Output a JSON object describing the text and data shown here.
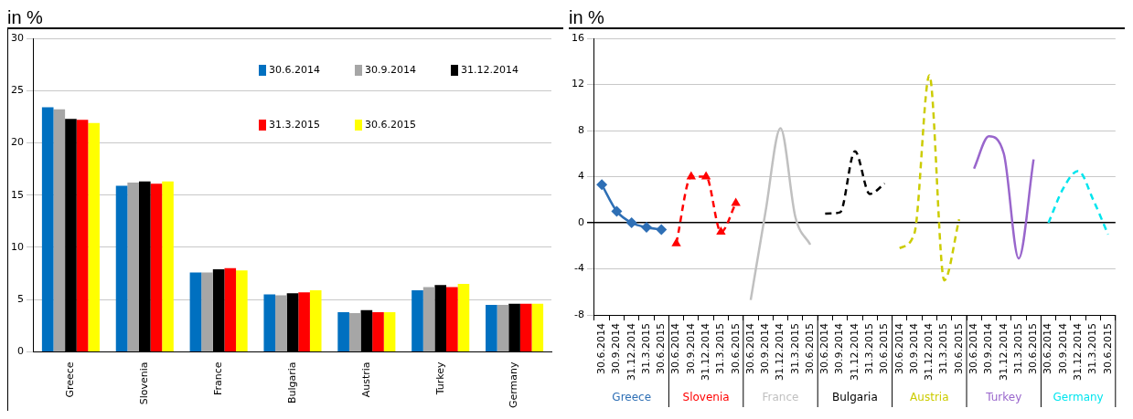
{
  "chart_data": [
    {
      "type": "bar",
      "ylabel": "in %",
      "categories": [
        "Greece",
        "Slovenia",
        "France",
        "Bulgaria",
        "Austria",
        "Turkey",
        "Germany"
      ],
      "series": [
        {
          "name": "30.6.2014",
          "color": "#0070c0",
          "values": [
            23.4,
            15.9,
            7.6,
            5.5,
            3.8,
            5.9,
            4.5
          ]
        },
        {
          "name": "30.9.2014",
          "color": "#a6a6a6",
          "values": [
            23.2,
            16.2,
            7.6,
            5.4,
            3.7,
            6.2,
            4.5
          ]
        },
        {
          "name": "31.12.2014",
          "color": "#000000",
          "values": [
            22.3,
            16.3,
            7.9,
            5.6,
            4.0,
            6.4,
            4.6
          ]
        },
        {
          "name": "31.3.2015",
          "color": "#ff0000",
          "values": [
            22.2,
            16.1,
            8.0,
            5.7,
            3.8,
            6.2,
            4.6
          ]
        },
        {
          "name": "30.6.2015",
          "color": "#ffff00",
          "values": [
            21.9,
            16.3,
            7.8,
            5.9,
            3.8,
            6.5,
            4.6
          ]
        }
      ],
      "ylim": [
        0,
        30
      ],
      "yticks": [
        0,
        5,
        10,
        15,
        20,
        25,
        30
      ],
      "grid": "y",
      "legend": "top right"
    },
    {
      "type": "line",
      "ylabel": "in %",
      "categories": [
        "30.6.2014",
        "30.9.2014",
        "31.12.2014",
        "31.3.2015",
        "30.6.2015",
        "30.6.2014",
        "30.9.2014",
        "31.12.2014",
        "31.3.2015",
        "30.6.2015",
        "30.6.2014",
        "30.9.2014",
        "31.12.2014",
        "31.3.2015",
        "30.6.2015",
        "30.6.2014",
        "30.9.2014",
        "31.12.2014",
        "31.3.2015",
        "30.6.2015",
        "30.6.2014",
        "30.9.2014",
        "31.12.2014",
        "31.3.2015",
        "30.6.2015",
        "30.6.2014",
        "30.9.2014",
        "31.12.2014",
        "31.3.2015",
        "30.6.2015",
        "30.6.2014",
        "30.9.2014",
        "31.12.2014",
        "31.3.2015",
        "30.6.2015"
      ],
      "series": [
        {
          "name": "Greece",
          "color": "#2e6fb5",
          "marker": "diamond",
          "line_style": "solid",
          "values": [
            3.3,
            1.0,
            0.0,
            -0.4,
            -0.6,
            null,
            null,
            null,
            null,
            null,
            null,
            null,
            null,
            null,
            null,
            null,
            null,
            null,
            null,
            null,
            null,
            null,
            null,
            null,
            null,
            null,
            null,
            null,
            null,
            null,
            null,
            null,
            null,
            null,
            null
          ]
        },
        {
          "name": "Slovenia",
          "color": "#ff0000",
          "marker": "triangle",
          "line_style": "dashed",
          "values": [
            null,
            null,
            null,
            null,
            null,
            -1.8,
            4.0,
            4.0,
            -0.8,
            1.7,
            null,
            null,
            null,
            null,
            null,
            null,
            null,
            null,
            null,
            null,
            null,
            null,
            null,
            null,
            null,
            null,
            null,
            null,
            null,
            null,
            null,
            null,
            null,
            null,
            null
          ]
        },
        {
          "name": "France",
          "color": "#c0c0c0",
          "marker": "none",
          "line_style": "solid",
          "values": [
            null,
            null,
            null,
            null,
            null,
            null,
            null,
            null,
            null,
            null,
            -6.7,
            1.0,
            8.2,
            0.5,
            -1.9,
            null,
            null,
            null,
            null,
            null,
            null,
            null,
            null,
            null,
            null,
            null,
            null,
            null,
            null,
            null,
            null,
            null,
            null,
            null,
            null
          ]
        },
        {
          "name": "Bulgaria",
          "color": "#000000",
          "marker": "none",
          "line_style": "dashed",
          "values": [
            null,
            null,
            null,
            null,
            null,
            null,
            null,
            null,
            null,
            null,
            null,
            null,
            null,
            null,
            null,
            0.8,
            0.9,
            6.2,
            2.5,
            3.4,
            null,
            null,
            null,
            null,
            null,
            null,
            null,
            null,
            null,
            null,
            null,
            null,
            null,
            null,
            null
          ]
        },
        {
          "name": "Austria",
          "color": "#cccc00",
          "marker": "none",
          "line_style": "dashed",
          "values": [
            null,
            null,
            null,
            null,
            null,
            null,
            null,
            null,
            null,
            null,
            null,
            null,
            null,
            null,
            null,
            null,
            null,
            null,
            null,
            null,
            -2.2,
            -0.9,
            12.8,
            -5.0,
            0.3,
            null,
            null,
            null,
            null,
            null,
            null,
            null,
            null,
            null,
            null
          ]
        },
        {
          "name": "Turkey",
          "color": "#9966cc",
          "marker": "none",
          "line_style": "solid",
          "values": [
            null,
            null,
            null,
            null,
            null,
            null,
            null,
            null,
            null,
            null,
            null,
            null,
            null,
            null,
            null,
            null,
            null,
            null,
            null,
            null,
            null,
            null,
            null,
            null,
            null,
            4.7,
            7.5,
            6.0,
            -3.1,
            5.5,
            null,
            null,
            null,
            null,
            null
          ]
        },
        {
          "name": "Germany",
          "color": "#00e5ee",
          "marker": "none",
          "line_style": "dashed",
          "values": [
            null,
            null,
            null,
            null,
            null,
            null,
            null,
            null,
            null,
            null,
            null,
            null,
            null,
            null,
            null,
            null,
            null,
            null,
            null,
            null,
            null,
            null,
            null,
            null,
            null,
            null,
            null,
            null,
            null,
            null,
            0.0,
            3.0,
            4.5,
            2.0,
            -1.0
          ]
        }
      ],
      "ylim": [
        -8,
        16
      ],
      "yticks": [
        -8,
        -4,
        0,
        4,
        8,
        12,
        16
      ],
      "grid": "y"
    }
  ]
}
